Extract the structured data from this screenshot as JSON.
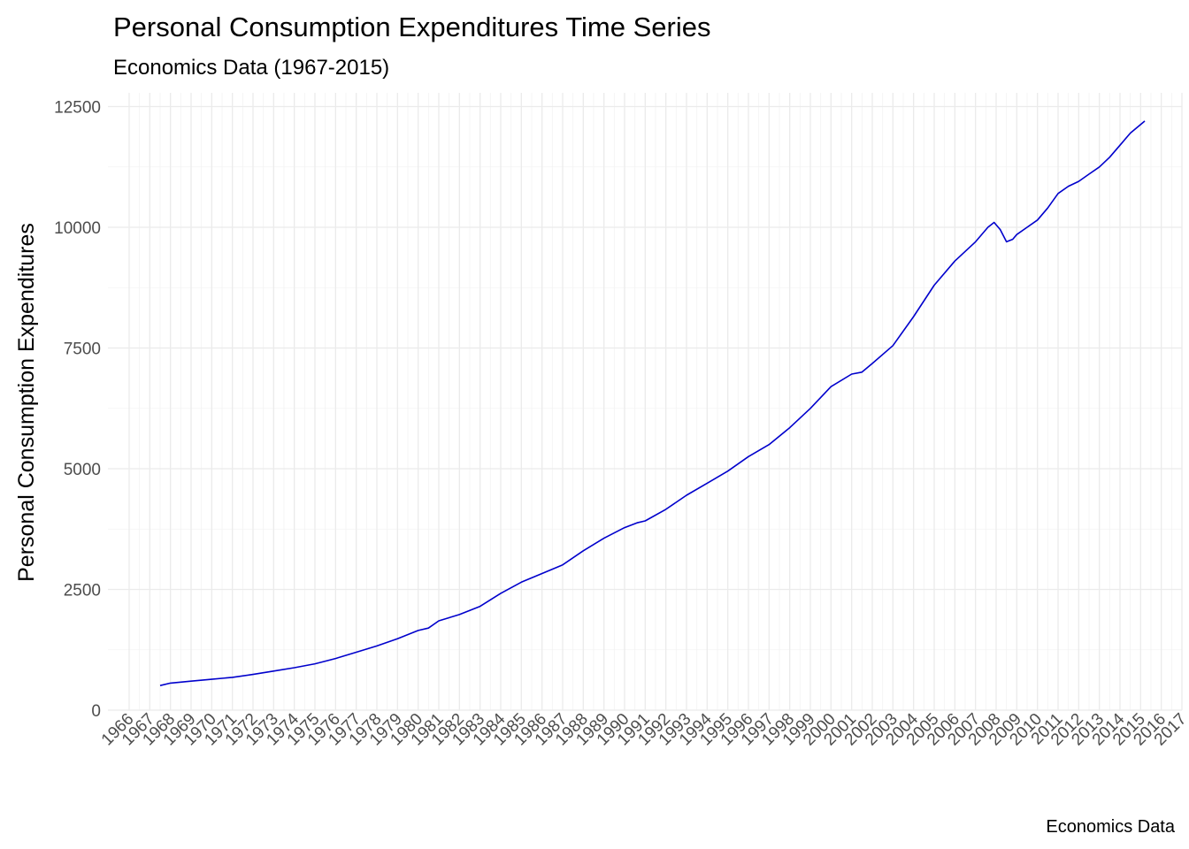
{
  "chart_data": {
    "type": "line",
    "title": "Personal Consumption Expenditures Time Series",
    "subtitle": "Economics Data (1967-2015)",
    "xlabel": "",
    "ylabel": "Personal Consumption Expenditures",
    "caption": "Economics Data",
    "xlim": [
      1966,
      2017
    ],
    "ylim": [
      0,
      12500
    ],
    "x_ticks": [
      "1966",
      "1967",
      "1968",
      "1969",
      "1970",
      "1971",
      "1972",
      "1973",
      "1974",
      "1975",
      "1976",
      "1977",
      "1978",
      "1979",
      "1980",
      "1981",
      "1982",
      "1983",
      "1984",
      "1985",
      "1986",
      "1987",
      "1988",
      "1989",
      "1990",
      "1991",
      "1992",
      "1993",
      "1994",
      "1995",
      "1996",
      "1997",
      "1998",
      "1999",
      "2000",
      "2001",
      "2002",
      "2003",
      "2004",
      "2005",
      "2006",
      "2007",
      "2008",
      "2009",
      "2010",
      "2011",
      "2012",
      "2013",
      "2014",
      "2015",
      "2016",
      "2017"
    ],
    "y_ticks": [
      "0",
      "2500",
      "5000",
      "7500",
      "10000",
      "12500"
    ],
    "grid": true,
    "series": [
      {
        "color": "#0000cc",
        "x": [
          1967.5,
          1968,
          1969,
          1970,
          1971,
          1972,
          1973,
          1974,
          1975,
          1976,
          1977,
          1978,
          1979,
          1980,
          1980.5,
          1981,
          1982,
          1983,
          1984,
          1985,
          1986,
          1987,
          1988,
          1989,
          1990,
          1990.6,
          1991,
          1992,
          1993,
          1994,
          1995,
          1996,
          1997,
          1998,
          1999,
          2000,
          2001,
          2001.5,
          2002,
          2003,
          2004,
          2005,
          2006,
          2007,
          2007.6,
          2007.9,
          2008.2,
          2008.5,
          2008.8,
          2009,
          2009.5,
          2010,
          2010.5,
          2011,
          2011.5,
          2012,
          2012.5,
          2013,
          2013.5,
          2014,
          2014.5,
          2015.2
        ],
        "y": [
          510,
          560,
          600,
          640,
          680,
          740,
          810,
          880,
          960,
          1070,
          1200,
          1330,
          1480,
          1650,
          1700,
          1850,
          1980,
          2150,
          2420,
          2650,
          2830,
          3010,
          3300,
          3560,
          3780,
          3880,
          3920,
          4160,
          4450,
          4700,
          4950,
          5250,
          5500,
          5850,
          6250,
          6700,
          6960,
          7000,
          7180,
          7550,
          8150,
          8800,
          9300,
          9700,
          10000,
          10100,
          9950,
          9700,
          9750,
          9850,
          10000,
          10150,
          10400,
          10700,
          10850,
          10950,
          11100,
          11250,
          11450,
          11700,
          11950,
          12200
        ]
      }
    ]
  }
}
